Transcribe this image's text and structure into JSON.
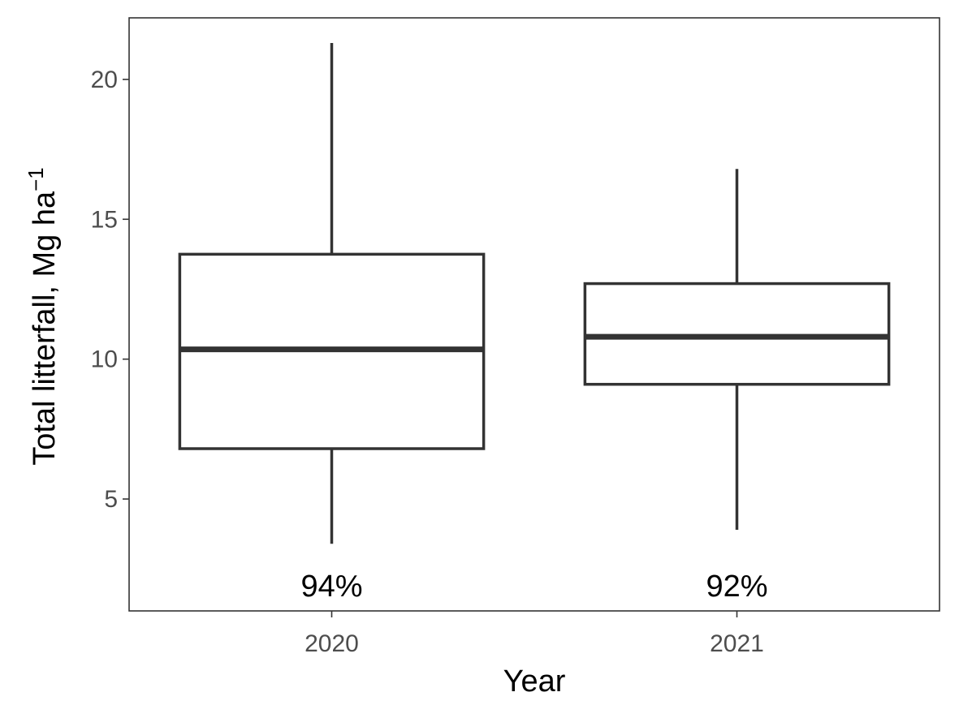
{
  "chart_data": {
    "type": "boxplot",
    "title": "",
    "xlabel": "Year",
    "ylabel": {
      "main": "Total litterfall, Mg ha",
      "superscript": "−1"
    },
    "ylim": [
      1.0,
      22.2
    ],
    "yticks": [
      5,
      10,
      15,
      20
    ],
    "grid": false,
    "legend": "none",
    "categories": [
      "2020",
      "2021"
    ],
    "boxes": [
      {
        "category": "2020",
        "whisker_low": 3.4,
        "q1": 6.8,
        "median": 10.35,
        "q3": 13.75,
        "whisker_high": 21.3,
        "annotation": "94%"
      },
      {
        "category": "2021",
        "whisker_low": 3.9,
        "q1": 9.1,
        "median": 10.8,
        "q3": 12.7,
        "whisker_high": 16.8,
        "annotation": "92%"
      }
    ],
    "annotation_y": 1.9,
    "colors": {
      "box_line": "#333333",
      "panel_border": "#333333",
      "tick_text": "#4d4d4d",
      "title_text": "#000000",
      "box_fill": "#ffffff"
    }
  }
}
